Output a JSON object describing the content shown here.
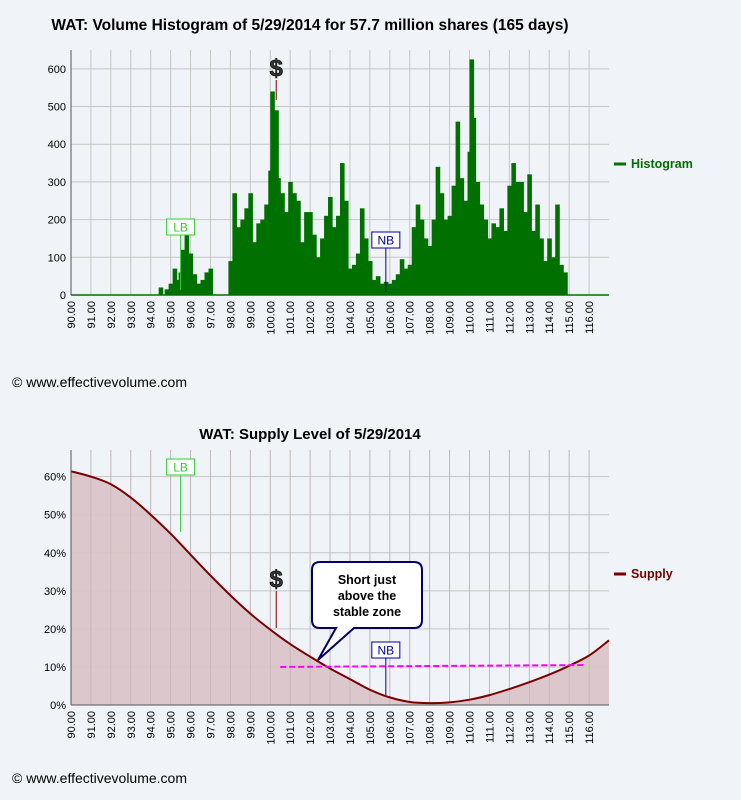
{
  "copyright": "© www.effectivevolume.com",
  "colors": {
    "histogram": "#007000",
    "supply": "#7a0000",
    "supply_fill": "#d9c3c6",
    "stable": "#ff00ff",
    "lb": "#33cc33",
    "nb": "#000099",
    "grid": "#c6c6c6"
  },
  "chart_data": [
    {
      "type": "bar",
      "title": "WAT: Volume Histogram of 5/29/2014 for 57.7 million shares (165 days)",
      "legend": "Histogram",
      "legend_position": "right",
      "xlim": [
        90,
        117
      ],
      "ylim": [
        0,
        650
      ],
      "yticks": [
        0,
        100,
        200,
        300,
        400,
        500,
        600
      ],
      "xticks": [
        "90.00",
        "91.00",
        "92.00",
        "93.00",
        "94.00",
        "95.00",
        "96.00",
        "97.00",
        "98.00",
        "99.00",
        "100.00",
        "101.00",
        "102.00",
        "103.00",
        "104.00",
        "105.00",
        "106.00",
        "107.00",
        "108.00",
        "109.00",
        "110.00",
        "111.00",
        "112.00",
        "113.00",
        "114.00",
        "115.00",
        "116.00"
      ],
      "grid": true,
      "series": [
        {
          "name": "Histogram",
          "x": [
            94.5,
            94.8,
            95.0,
            95.2,
            95.4,
            95.5,
            95.6,
            95.8,
            96.0,
            96.2,
            96.4,
            96.6,
            96.8,
            97.0,
            97.2,
            97.4,
            97.6,
            97.8,
            98.0,
            98.2,
            98.4,
            98.6,
            98.8,
            99.0,
            99.2,
            99.4,
            99.6,
            99.8,
            100.0,
            100.1,
            100.2,
            100.3,
            100.4,
            100.6,
            100.8,
            101.0,
            101.2,
            101.4,
            101.6,
            101.8,
            102.0,
            102.2,
            102.4,
            102.6,
            102.8,
            103.0,
            103.2,
            103.4,
            103.6,
            103.8,
            104.0,
            104.2,
            104.4,
            104.6,
            104.8,
            105.0,
            105.2,
            105.4,
            105.6,
            105.8,
            106.0,
            106.2,
            106.4,
            106.6,
            106.8,
            107.0,
            107.2,
            107.4,
            107.6,
            107.8,
            108.0,
            108.2,
            108.4,
            108.6,
            108.8,
            109.0,
            109.2,
            109.4,
            109.6,
            109.8,
            110.0,
            110.1,
            110.2,
            110.4,
            110.6,
            110.8,
            111.0,
            111.2,
            111.4,
            111.6,
            111.8,
            112.0,
            112.2,
            112.4,
            112.6,
            112.8,
            113.0,
            113.2,
            113.4,
            113.6,
            113.8,
            114.0,
            114.2,
            114.4,
            114.6,
            114.8
          ],
          "values": [
            20,
            15,
            30,
            70,
            40,
            60,
            120,
            160,
            110,
            55,
            30,
            40,
            60,
            70,
            0,
            0,
            0,
            0,
            90,
            270,
            180,
            200,
            230,
            270,
            140,
            190,
            200,
            240,
            330,
            540,
            450,
            490,
            310,
            270,
            220,
            300,
            270,
            250,
            140,
            220,
            220,
            160,
            100,
            150,
            210,
            260,
            180,
            210,
            350,
            250,
            70,
            80,
            110,
            230,
            150,
            90,
            40,
            50,
            30,
            35,
            30,
            40,
            55,
            95,
            70,
            80,
            180,
            240,
            200,
            150,
            130,
            200,
            340,
            270,
            200,
            210,
            290,
            460,
            310,
            250,
            380,
            625,
            470,
            300,
            240,
            200,
            150,
            190,
            180,
            230,
            170,
            290,
            350,
            300,
            300,
            220,
            320,
            170,
            240,
            150,
            90,
            150,
            100,
            240,
            80,
            60
          ]
        }
      ],
      "markers": [
        {
          "label": "$",
          "x": 100.3
        },
        {
          "label": "LB",
          "x": 95.5
        },
        {
          "label": "NB",
          "x": 105.8
        }
      ]
    },
    {
      "type": "area",
      "title": "WAT: Supply Level of 5/29/2014",
      "legend": "Supply",
      "legend_position": "right",
      "xlim": [
        90,
        117
      ],
      "ylim": [
        0,
        0.67
      ],
      "yticks": [
        "0%",
        "10%",
        "20%",
        "30%",
        "40%",
        "50%",
        "60%"
      ],
      "xticks": [
        "90.00",
        "91.00",
        "92.00",
        "93.00",
        "94.00",
        "95.00",
        "96.00",
        "97.00",
        "98.00",
        "99.00",
        "100.00",
        "101.00",
        "102.00",
        "103.00",
        "104.00",
        "105.00",
        "106.00",
        "107.00",
        "108.00",
        "109.00",
        "110.00",
        "111.00",
        "112.00",
        "113.00",
        "114.00",
        "115.00",
        "116.00"
      ],
      "grid": true,
      "series": [
        {
          "name": "Supply",
          "x": [
            90,
            91,
            92,
            93,
            94,
            95,
            96,
            97,
            98,
            99,
            100,
            101,
            102,
            103,
            104,
            105,
            106,
            107,
            108,
            109,
            110,
            111,
            112,
            113,
            114,
            115,
            116,
            117
          ],
          "values": [
            0.614,
            0.6,
            0.58,
            0.545,
            0.5,
            0.45,
            0.395,
            0.34,
            0.288,
            0.24,
            0.198,
            0.16,
            0.127,
            0.096,
            0.068,
            0.04,
            0.02,
            0.008,
            0.005,
            0.007,
            0.014,
            0.026,
            0.042,
            0.06,
            0.08,
            0.103,
            0.13,
            0.17
          ]
        }
      ],
      "stable_zone": {
        "x": [
          100.5,
          115.8
        ],
        "y": [
          0.1,
          0.105
        ]
      },
      "markers": [
        {
          "label": "LB",
          "x": 95.5
        },
        {
          "label": "$",
          "x": 100.3
        },
        {
          "label": "NB",
          "x": 105.8
        }
      ],
      "annotation": {
        "text": [
          "Short just",
          "above the",
          "stable zone"
        ],
        "target_x": 102.5,
        "target_y": 0.105
      }
    }
  ]
}
